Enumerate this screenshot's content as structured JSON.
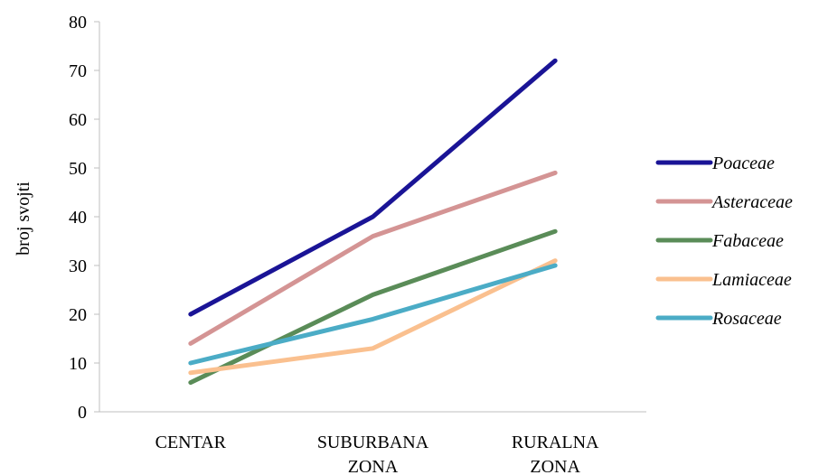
{
  "chart_data": {
    "type": "line",
    "categories": [
      [
        "CENTAR"
      ],
      [
        "SUBURBANA",
        "ZONA"
      ],
      [
        "RURALNA",
        "ZONA"
      ]
    ],
    "ylabel": "broj svojti",
    "ylim": [
      0,
      80
    ],
    "yticks": [
      0,
      10,
      20,
      30,
      40,
      50,
      60,
      70,
      80
    ],
    "legend_position": "right",
    "grid": false,
    "series": [
      {
        "name": "Poaceae",
        "color": "#1a1496",
        "values": [
          20,
          40,
          72
        ]
      },
      {
        "name": "Asteraceae",
        "color": "#d49494",
        "values": [
          14,
          36,
          49
        ]
      },
      {
        "name": "Fabaceae",
        "color": "#5a8c58",
        "values": [
          6,
          24,
          37
        ]
      },
      {
        "name": "Lamiaceae",
        "color": "#fac08f",
        "values": [
          8,
          13,
          31
        ]
      },
      {
        "name": "Rosaceae",
        "color": "#4bacc6",
        "values": [
          10,
          19,
          30
        ]
      }
    ]
  }
}
